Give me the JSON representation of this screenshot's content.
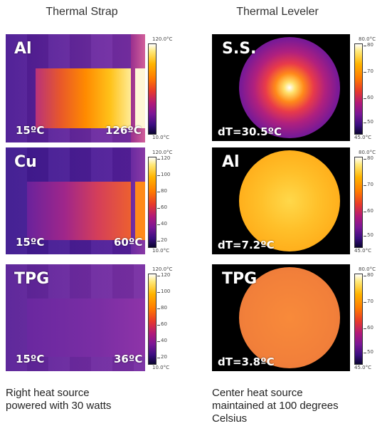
{
  "headers": {
    "left": "Thermal Strap",
    "right": "Thermal Leveler"
  },
  "strap_panels": [
    {
      "material": "Al",
      "left_temp": "15ºC",
      "right_temp": "126ºC",
      "scale_max": "120.0°C",
      "scale_min": "10.0°C",
      "ticks": []
    },
    {
      "material": "Cu",
      "left_temp": "15ºC",
      "right_temp": "60ºC",
      "scale_max": "120.0°C",
      "scale_min": "10.0°C",
      "ticks": [
        "120",
        "100",
        "80",
        "60",
        "40",
        "20"
      ]
    },
    {
      "material": "TPG",
      "left_temp": "15ºC",
      "right_temp": "36ºC",
      "scale_max": "120.0°C",
      "scale_min": "10.0°C",
      "ticks": [
        "120",
        "100",
        "80",
        "60",
        "40",
        "20"
      ]
    }
  ],
  "leveler_panels": [
    {
      "material": "S.S.",
      "dT": "dT=30.5ºC",
      "scale_max": "80.0°C",
      "scale_min": "45.0°C",
      "ticks": [
        "80",
        "70",
        "60",
        "50"
      ]
    },
    {
      "material": "Al",
      "dT": "dT=7.2ºC",
      "scale_max": "80.0°C",
      "scale_min": "45.0°C",
      "ticks": [
        "80",
        "70",
        "60",
        "50"
      ]
    },
    {
      "material": "TPG",
      "dT": "dT=3.8ºC",
      "scale_max": "80.0°C",
      "scale_min": "45.0°C",
      "ticks": [
        "80",
        "70",
        "60",
        "50"
      ]
    }
  ],
  "captions": {
    "left": [
      "Right heat source",
      "powered with 30 watts"
    ],
    "right": [
      "Center heat source",
      "maintained at 100 degrees",
      "Celsius"
    ]
  },
  "colors": {
    "background": "#ffffff",
    "leveler_bg": "#000000"
  }
}
